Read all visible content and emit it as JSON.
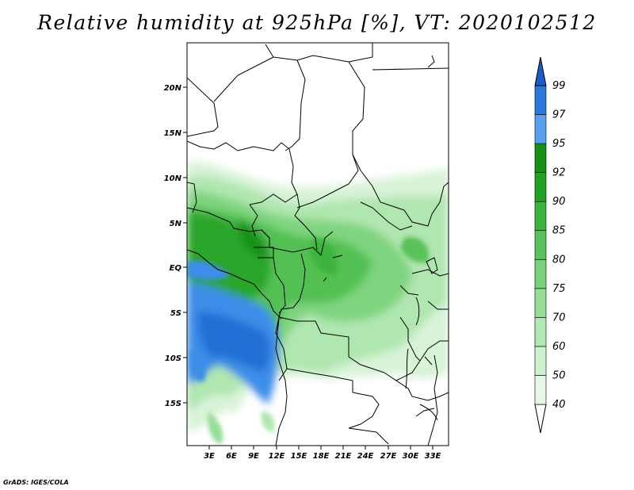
{
  "title": "Relative humidity at 925hPa [%], VT: 2020102512",
  "lat_ticks": [
    "20N",
    "15N",
    "10N",
    "5N",
    "EQ",
    "5S",
    "10S",
    "15S"
  ],
  "lon_ticks": [
    "3E",
    "6E",
    "9E",
    "12E",
    "15E",
    "18E",
    "21E",
    "24E",
    "27E",
    "30E",
    "33E"
  ],
  "colorbar": {
    "levels": [
      "40",
      "50",
      "60",
      "70",
      "75",
      "80",
      "85",
      "90",
      "92",
      "95",
      "97",
      "99"
    ],
    "colors": [
      "#ffffff",
      "#e6f7e6",
      "#cdf0cd",
      "#b2e8b2",
      "#96dd96",
      "#78d078",
      "#5ac25a",
      "#3cb43c",
      "#22a222",
      "#159015",
      "#5aa0f0",
      "#2a78dc",
      "#1a5ccc"
    ]
  },
  "credit": "GrADS: IGES/COLA"
}
